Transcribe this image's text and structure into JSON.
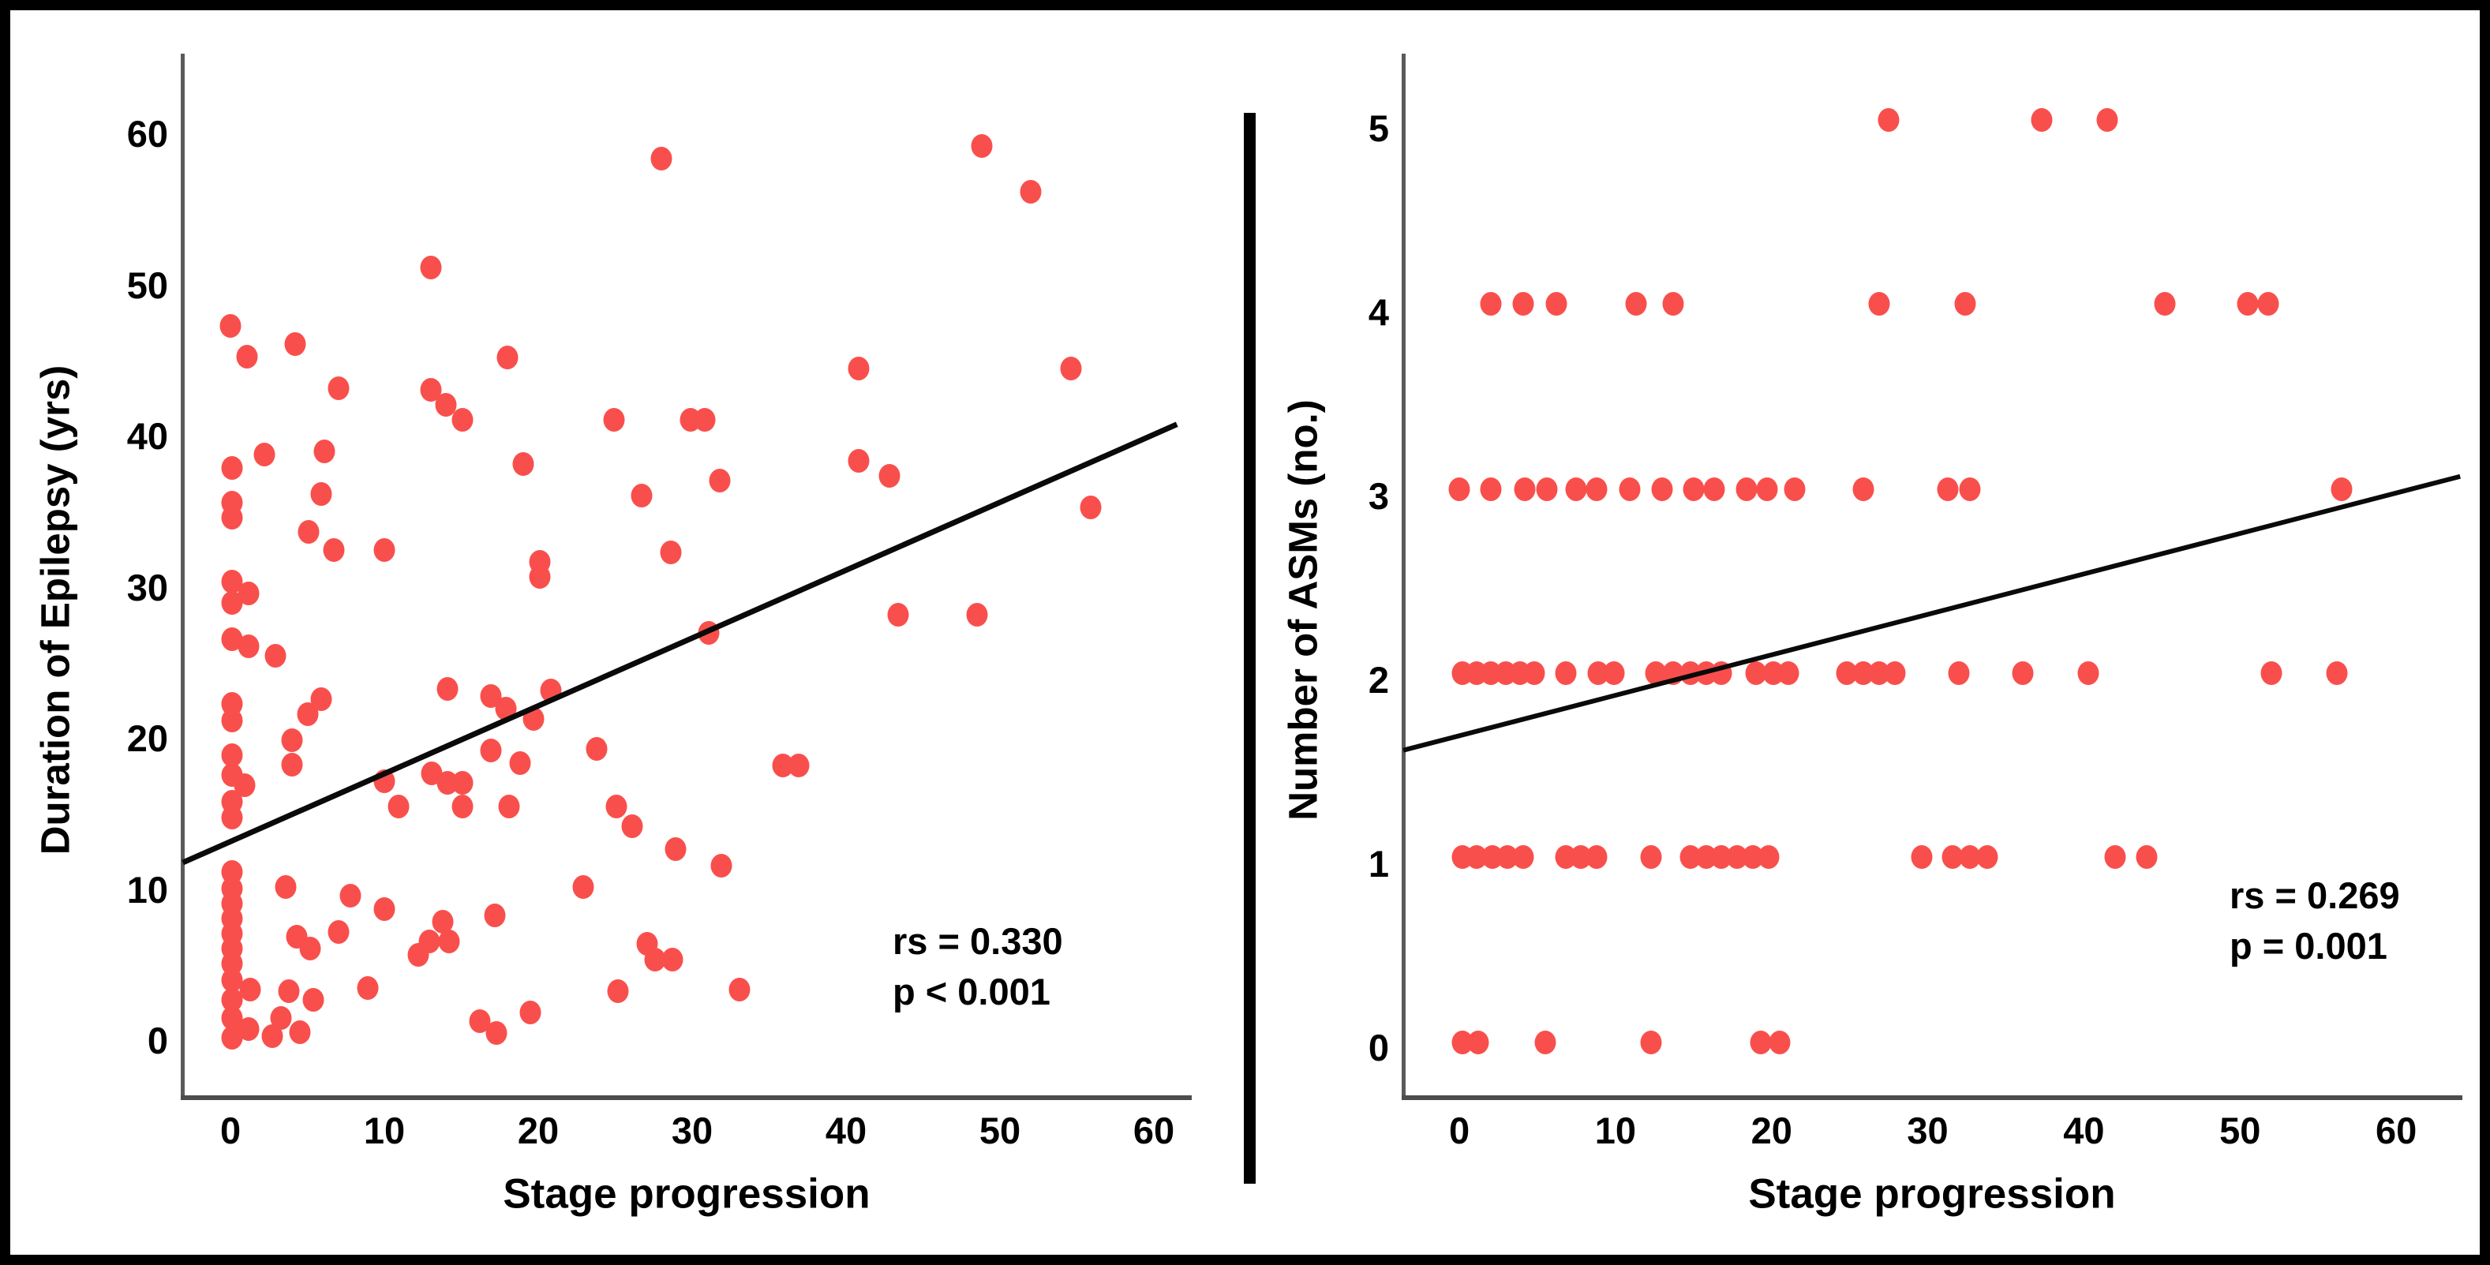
{
  "figure": {
    "background": "#ffffff",
    "border_color": "#000000",
    "divider_color": "#000000",
    "dot_color": "#f94f4c",
    "trend_color": "#0a0a0a",
    "axis_color": "#555555",
    "text_color": "#000000"
  },
  "chart_data": [
    {
      "type": "scatter",
      "xlabel": "Stage progression",
      "ylabel": "Duration of Epilepsy (yrs)",
      "annotation": [
        "rs = 0.330",
        "p < 0.001"
      ],
      "x_ticks": [
        0,
        10,
        20,
        30,
        40,
        50,
        60
      ],
      "y_ticks": [
        0,
        10,
        20,
        30,
        40,
        50,
        60
      ],
      "xlim": [
        -3.13,
        62.36
      ],
      "ylim": [
        -3.76,
        65.33
      ],
      "grid": false,
      "legend": false,
      "trendline": {
        "x1": -3.1,
        "y1": 11.8,
        "x2": 61.5,
        "y2": 40.8
      },
      "points": [
        [
          0,
          47.3
        ],
        [
          1.1,
          45.3
        ],
        [
          0.1,
          37.9
        ],
        [
          0.1,
          35.6
        ],
        [
          0.1,
          34.6
        ],
        [
          0.1,
          30.4
        ],
        [
          1.2,
          29.6
        ],
        [
          0.1,
          29
        ],
        [
          0.1,
          26.6
        ],
        [
          1.2,
          26.1
        ],
        [
          0.1,
          22.3
        ],
        [
          0.1,
          21.2
        ],
        [
          0.1,
          18.9
        ],
        [
          0.1,
          17.6
        ],
        [
          0.9,
          16.9
        ],
        [
          0.1,
          15.8
        ],
        [
          0.1,
          14.8
        ],
        [
          0.1,
          11.2
        ],
        [
          0.1,
          10.1
        ],
        [
          0.1,
          9.1
        ],
        [
          0.1,
          8.1
        ],
        [
          0.1,
          7.1
        ],
        [
          0.1,
          6.1
        ],
        [
          0.1,
          5.1
        ],
        [
          0.1,
          4
        ],
        [
          1.3,
          3.4
        ],
        [
          0.1,
          2.7
        ],
        [
          0.1,
          1.5
        ],
        [
          1.2,
          0.8
        ],
        [
          0.1,
          0.2
        ],
        [
          2.2,
          38.8
        ],
        [
          2.9,
          25.5
        ],
        [
          4.2,
          46.1
        ],
        [
          7,
          43.2
        ],
        [
          6.1,
          39
        ],
        [
          5.9,
          36.2
        ],
        [
          5.1,
          33.7
        ],
        [
          6.7,
          32.5
        ],
        [
          5.9,
          22.6
        ],
        [
          5,
          21.6
        ],
        [
          4,
          19.9
        ],
        [
          4,
          18.3
        ],
        [
          3.6,
          10.2
        ],
        [
          7.8,
          9.6
        ],
        [
          4.3,
          6.9
        ],
        [
          5.2,
          6.1
        ],
        [
          7,
          7.2
        ],
        [
          3.8,
          3.3
        ],
        [
          5.4,
          2.7
        ],
        [
          2.7,
          0.3
        ],
        [
          4.5,
          0.6
        ],
        [
          3.3,
          1.5
        ],
        [
          8.9,
          3.5
        ],
        [
          13,
          51.2
        ],
        [
          18,
          45.2
        ],
        [
          13,
          43.1
        ],
        [
          14,
          42.1
        ],
        [
          15.1,
          41.1
        ],
        [
          19,
          38.2
        ],
        [
          14.1,
          23.3
        ],
        [
          16.9,
          22.8
        ],
        [
          20.8,
          23.2
        ],
        [
          17.9,
          22
        ],
        [
          19.7,
          21.3
        ],
        [
          16.9,
          19.2
        ],
        [
          18.8,
          18.4
        ],
        [
          13.1,
          17.7
        ],
        [
          14.1,
          17.1
        ],
        [
          15.1,
          17.1
        ],
        [
          10,
          17.2
        ],
        [
          10.9,
          15.5
        ],
        [
          15.1,
          15.5
        ],
        [
          18.1,
          15.5
        ],
        [
          20.1,
          31.7
        ],
        [
          20.1,
          30.7
        ],
        [
          10,
          32.5
        ],
        [
          10,
          8.7
        ],
        [
          13.8,
          7.9
        ],
        [
          12.9,
          6.6
        ],
        [
          14.2,
          6.6
        ],
        [
          12.2,
          5.7
        ],
        [
          17.2,
          8.3
        ],
        [
          16.2,
          1.3
        ],
        [
          17.3,
          0.5
        ],
        [
          19.5,
          1.9
        ],
        [
          24.9,
          41.1
        ],
        [
          29.9,
          41.1
        ],
        [
          30.8,
          41.1
        ],
        [
          26.7,
          36.1
        ],
        [
          31.8,
          37.1
        ],
        [
          28.6,
          32.3
        ],
        [
          23.8,
          19.3
        ],
        [
          25.1,
          15.5
        ],
        [
          26.1,
          14.2
        ],
        [
          28.9,
          12.7
        ],
        [
          31.9,
          11.6
        ],
        [
          22.9,
          10.2
        ],
        [
          27.1,
          6.4
        ],
        [
          27.6,
          5.4
        ],
        [
          28.7,
          5.4
        ],
        [
          25.2,
          3.3
        ],
        [
          33.1,
          3.4
        ],
        [
          31.1,
          27
        ],
        [
          28,
          58.4
        ],
        [
          35.9,
          18.2
        ],
        [
          36.9,
          18.2
        ],
        [
          40.8,
          44.5
        ],
        [
          54.6,
          44.5
        ],
        [
          40.8,
          38.4
        ],
        [
          42.8,
          37.4
        ],
        [
          55.9,
          35.3
        ],
        [
          43.4,
          28.2
        ],
        [
          48.5,
          28.2
        ],
        [
          48.8,
          59.2
        ],
        [
          52,
          56.2
        ]
      ]
    },
    {
      "type": "scatter",
      "xlabel": "Stage progression",
      "ylabel": "Number of ASMs (no.)",
      "annotation": [
        "rs = 0.269",
        "p = 0.001"
      ],
      "x_ticks": [
        0,
        10,
        20,
        30,
        40,
        50,
        60
      ],
      "y_ticks": [
        0,
        1,
        2,
        3,
        4,
        5
      ],
      "xlim": [
        -3.59,
        64.14
      ],
      "ylim": [
        -0.27,
        5.41
      ],
      "grid": false,
      "legend": false,
      "trendline": {
        "x1": -3.59,
        "y1": 1.62,
        "x2": 64.1,
        "y2": 3.11
      },
      "points": [
        [
          0.2,
          0.03
        ],
        [
          1.2,
          0.03
        ],
        [
          5.5,
          0.03
        ],
        [
          12.3,
          0.03
        ],
        [
          19.3,
          0.03
        ],
        [
          20.5,
          0.03
        ],
        [
          0.2,
          1.04
        ],
        [
          1.1,
          1.04
        ],
        [
          2.1,
          1.04
        ],
        [
          3.1,
          1.04
        ],
        [
          4.1,
          1.04
        ],
        [
          6.8,
          1.04
        ],
        [
          7.8,
          1.04
        ],
        [
          8.8,
          1.04
        ],
        [
          12.3,
          1.04
        ],
        [
          14.8,
          1.04
        ],
        [
          15.8,
          1.04
        ],
        [
          16.8,
          1.04
        ],
        [
          17.8,
          1.04
        ],
        [
          18.8,
          1.04
        ],
        [
          19.8,
          1.04
        ],
        [
          29.6,
          1.04
        ],
        [
          31.6,
          1.04
        ],
        [
          32.7,
          1.04
        ],
        [
          33.8,
          1.04
        ],
        [
          42,
          1.04
        ],
        [
          44,
          1.04
        ],
        [
          0.2,
          2.04
        ],
        [
          1.1,
          2.04
        ],
        [
          2,
          2.04
        ],
        [
          3,
          2.04
        ],
        [
          3.9,
          2.04
        ],
        [
          4.8,
          2.04
        ],
        [
          6.8,
          2.04
        ],
        [
          8.9,
          2.04
        ],
        [
          9.9,
          2.04
        ],
        [
          12.6,
          2.04
        ],
        [
          13.7,
          2.04
        ],
        [
          14.8,
          2.04
        ],
        [
          15.8,
          2.04
        ],
        [
          16.8,
          2.04
        ],
        [
          19,
          2.04
        ],
        [
          20.1,
          2.04
        ],
        [
          21.1,
          2.04
        ],
        [
          24.8,
          2.04
        ],
        [
          25.9,
          2.04
        ],
        [
          26.9,
          2.04
        ],
        [
          27.9,
          2.04
        ],
        [
          32,
          2.04
        ],
        [
          36.1,
          2.04
        ],
        [
          40.3,
          2.04
        ],
        [
          52,
          2.04
        ],
        [
          56.2,
          2.04
        ],
        [
          0,
          3.04
        ],
        [
          2,
          3.04
        ],
        [
          4.2,
          3.04
        ],
        [
          5.6,
          3.04
        ],
        [
          7.5,
          3.04
        ],
        [
          8.8,
          3.04
        ],
        [
          10.9,
          3.04
        ],
        [
          13,
          3.04
        ],
        [
          15,
          3.04
        ],
        [
          16.3,
          3.04
        ],
        [
          18.4,
          3.04
        ],
        [
          19.7,
          3.04
        ],
        [
          21.5,
          3.04
        ],
        [
          25.9,
          3.04
        ],
        [
          31.3,
          3.04
        ],
        [
          32.7,
          3.04
        ],
        [
          56.5,
          3.04
        ],
        [
          2,
          4.05
        ],
        [
          4.1,
          4.05
        ],
        [
          6.2,
          4.05
        ],
        [
          11.3,
          4.05
        ],
        [
          13.7,
          4.05
        ],
        [
          26.9,
          4.05
        ],
        [
          32.4,
          4.05
        ],
        [
          45.2,
          4.05
        ],
        [
          50.5,
          4.05
        ],
        [
          51.8,
          4.05
        ],
        [
          27.5,
          5.05
        ],
        [
          37.3,
          5.05
        ],
        [
          41.5,
          5.05
        ]
      ]
    }
  ]
}
